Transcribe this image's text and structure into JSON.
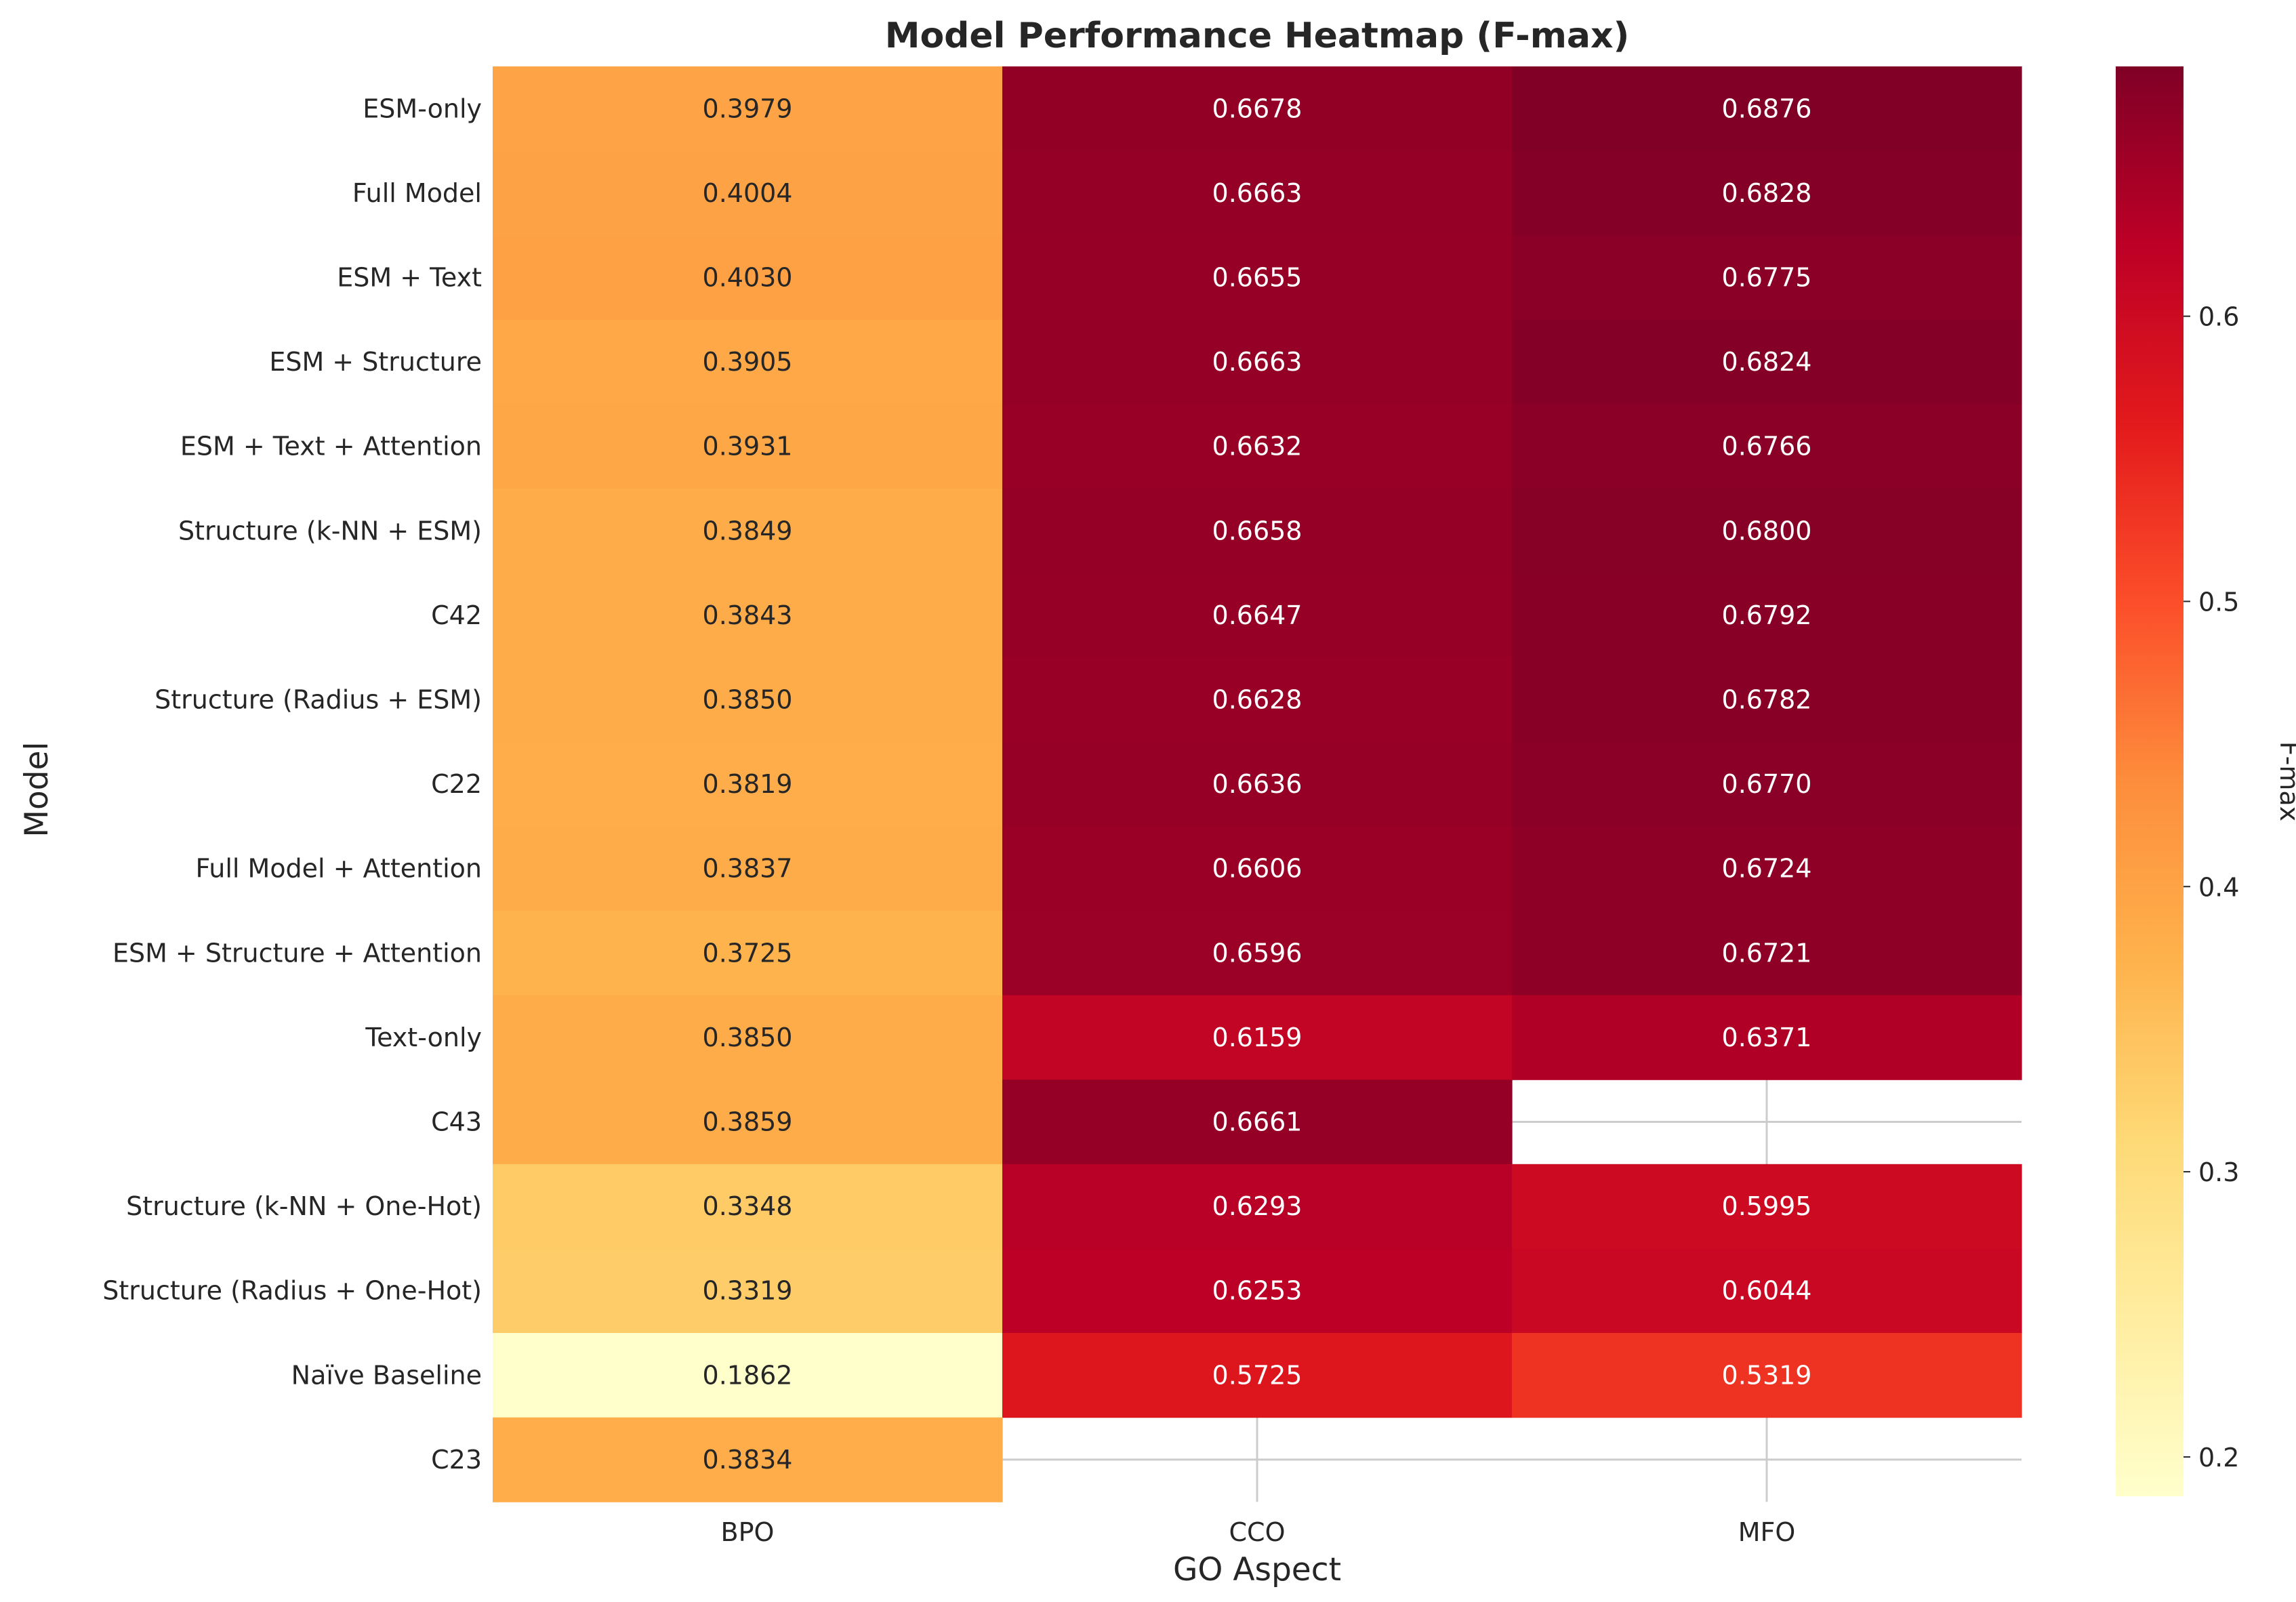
{
  "chart_data": {
    "type": "heatmap",
    "title": "Model Performance Heatmap (F-max)",
    "xlabel": "GO Aspect",
    "ylabel": "Model",
    "columns": [
      "BPO",
      "CCO",
      "MFO"
    ],
    "rows": [
      "ESM-only",
      "Full Model",
      "ESM + Text",
      "ESM + Structure",
      "ESM + Text + Attention",
      "Structure (k-NN + ESM)",
      "C42",
      "Structure (Radius + ESM)",
      "C22",
      "Full Model + Attention",
      "ESM + Structure + Attention",
      "Text-only",
      "C43",
      "Structure (k-NN + One-Hot)",
      "Structure (Radius + One-Hot)",
      "Naïve Baseline",
      "C23"
    ],
    "values": [
      [
        0.3979,
        0.6678,
        0.6876
      ],
      [
        0.4004,
        0.6663,
        0.6828
      ],
      [
        0.403,
        0.6655,
        0.6775
      ],
      [
        0.3905,
        0.6663,
        0.6824
      ],
      [
        0.3931,
        0.6632,
        0.6766
      ],
      [
        0.3849,
        0.6658,
        0.68
      ],
      [
        0.3843,
        0.6647,
        0.6792
      ],
      [
        0.385,
        0.6628,
        0.6782
      ],
      [
        0.3819,
        0.6636,
        0.677
      ],
      [
        0.3837,
        0.6606,
        0.6724
      ],
      [
        0.3725,
        0.6596,
        0.6721
      ],
      [
        0.385,
        0.6159,
        0.6371
      ],
      [
        0.3859,
        0.6661,
        null
      ],
      [
        0.3348,
        0.6293,
        0.5995
      ],
      [
        0.3319,
        0.6253,
        0.6044
      ],
      [
        0.1862,
        0.5725,
        0.5319
      ],
      [
        0.3834,
        null,
        null
      ]
    ],
    "colormap": "YlOrRd",
    "vmin": 0.1862,
    "vmax": 0.6876,
    "colorbar": {
      "label": "F-max",
      "ticks": [
        0.2,
        0.3,
        0.4,
        0.5,
        0.6
      ],
      "tick_labels": [
        "0.2",
        "0.3",
        "0.4",
        "0.5",
        "0.6"
      ]
    },
    "grid": true
  },
  "colors": {
    "text_dark": "#262626",
    "text_light": "#ffffff",
    "grid": "#cccccc",
    "colormap_stops": [
      "#ffffcc",
      "#ffeda0",
      "#fed976",
      "#feb24c",
      "#fd8d3c",
      "#fc4e2a",
      "#e31a1c",
      "#bd0026",
      "#800026"
    ]
  }
}
